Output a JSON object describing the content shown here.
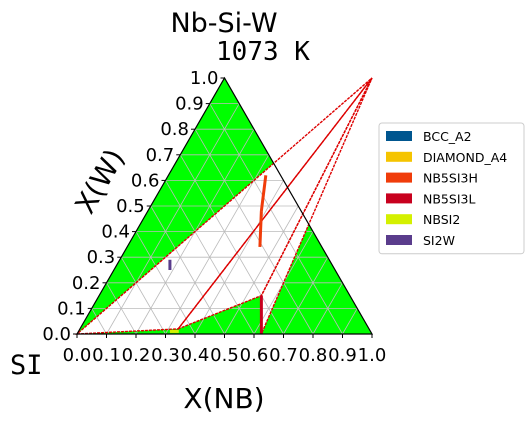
{
  "chart_data": {
    "type": "ternary",
    "title": "Nb-Si-W",
    "subtitle": "1073 K",
    "corner_label": "SI",
    "xlabel": "X(NB)",
    "ylabel": "X(W)",
    "ticks": [
      "0.0",
      "0.1",
      "0.2",
      "0.3",
      "0.4",
      "0.5",
      "0.6",
      "0.7",
      "0.8",
      "0.9",
      "1.0"
    ],
    "tick_values": [
      0,
      0.1,
      0.2,
      0.3,
      0.4,
      0.5,
      0.6,
      0.7,
      0.8,
      0.9,
      1.0
    ],
    "grid": true,
    "legend_position": "right",
    "legend": [
      {
        "label": "BCC_A2",
        "color": "#00568f"
      },
      {
        "label": "DIAMOND_A4",
        "color": "#f5c400"
      },
      {
        "label": "NB5SI3H",
        "color": "#f03c0a"
      },
      {
        "label": "NB5SI3L",
        "color": "#c8001e"
      },
      {
        "label": "NBSI2",
        "color": "#d4f000"
      },
      {
        "label": "SI2W",
        "color": "#5a3c8c"
      }
    ],
    "fill_color": "#00ff00",
    "boundary_color": "#dd0000",
    "two_phase_regions": [
      {
        "points": [
          [
            0,
            0
          ],
          [
            0.333,
            0
          ],
          [
            0.5,
            1
          ],
          [
            0,
            1
          ]
        ]
      },
      {
        "points": [
          [
            0.5,
            1
          ],
          [
            0.55,
            0.15
          ],
          [
            0.625,
            0
          ],
          [
            1,
            0
          ]
        ]
      }
    ],
    "tie_triangles": [
      {
        "points": [
          [
            0,
            0
          ],
          [
            0.333,
            0.02
          ],
          [
            0.5,
            1
          ]
        ]
      },
      {
        "points": [
          [
            0.333,
            0.02
          ],
          [
            0.5,
            1
          ],
          [
            0.55,
            0.15
          ]
        ]
      },
      {
        "points": [
          [
            0.55,
            0.15
          ],
          [
            0.625,
            0
          ],
          [
            0.5,
            1
          ]
        ]
      }
    ],
    "phase_segments": [
      {
        "phase": "NB5SI3H",
        "points": [
          [
            0.33,
            0.62
          ],
          [
            0.385,
            0.48
          ]
        ]
      },
      {
        "phase": "NB5SI3H",
        "points": [
          [
            0.385,
            0.48
          ],
          [
            0.45,
            0.34
          ]
        ]
      },
      {
        "phase": "NB5SI3L",
        "points": [
          [
            0.55,
            0.15
          ],
          [
            0.625,
            0
          ]
        ]
      },
      {
        "phase": "SI2W",
        "points": [
          [
            0.17,
            0.29
          ],
          [
            0.19,
            0.25
          ]
        ]
      },
      {
        "phase": "NBSI2",
        "points": [
          [
            0.31,
            0.01
          ],
          [
            0.34,
            0.01
          ]
        ]
      }
    ]
  }
}
